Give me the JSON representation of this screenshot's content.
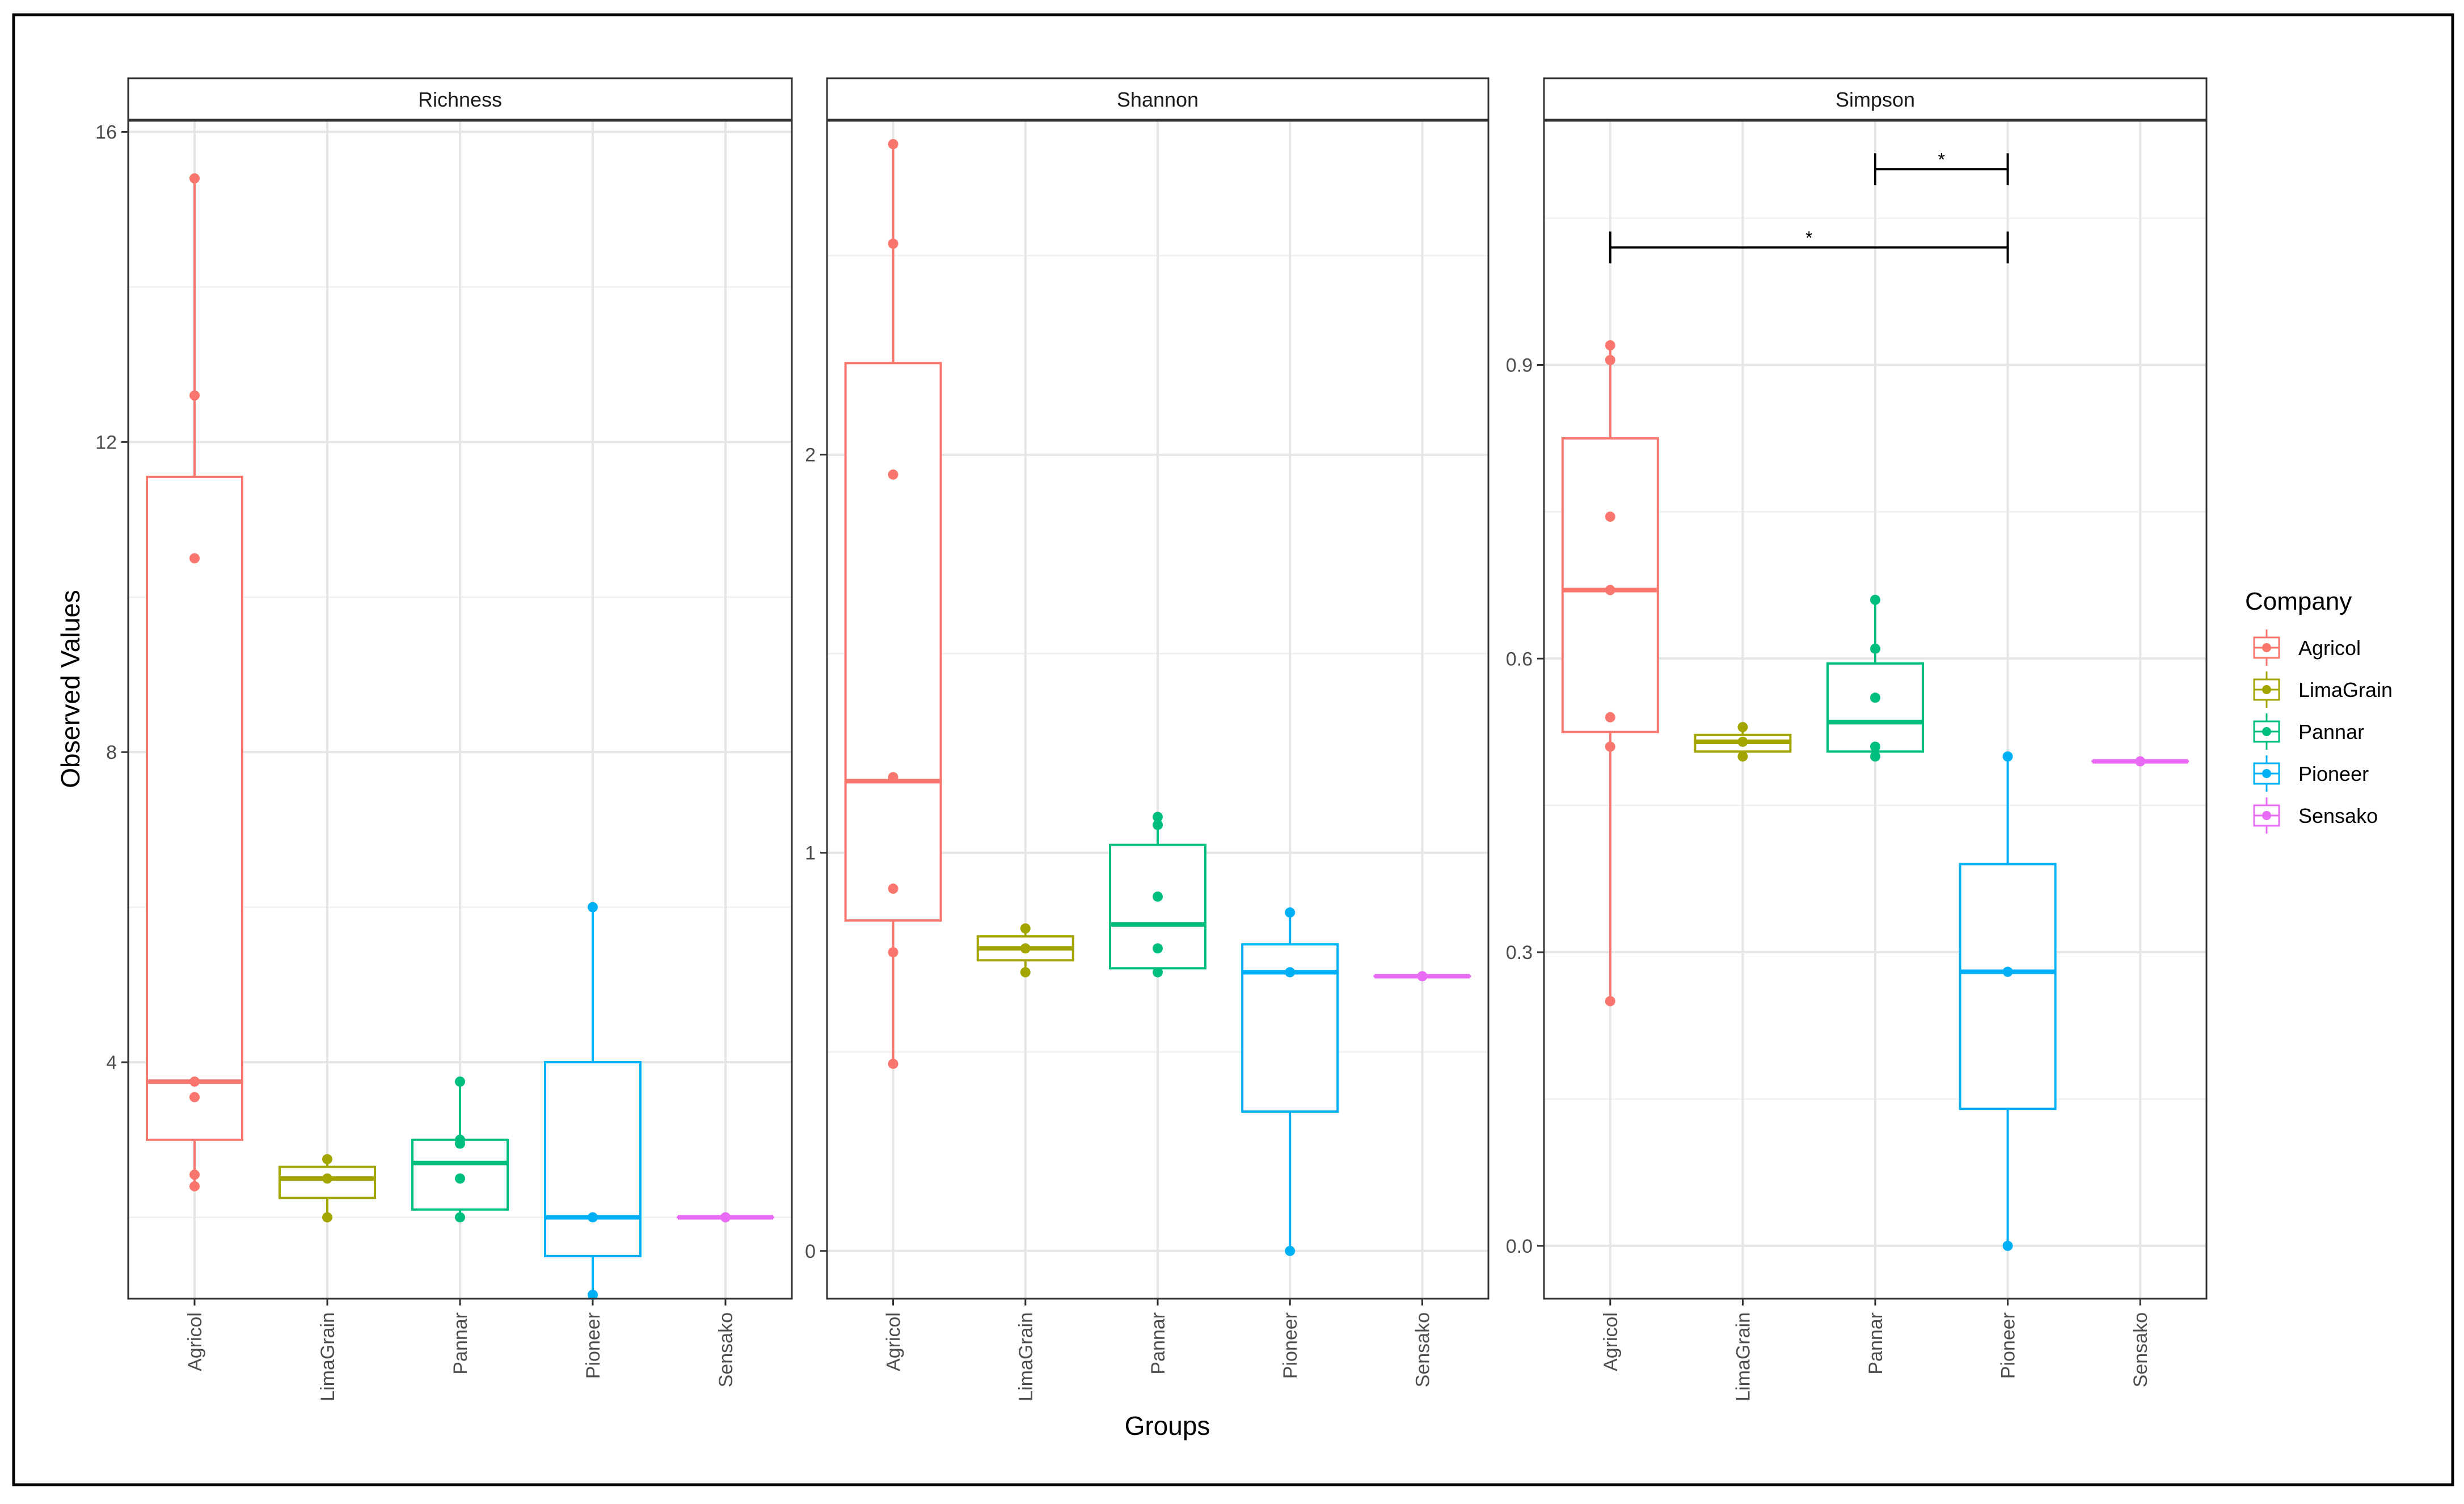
{
  "chart_data": {
    "type": "boxplot",
    "xlabel": "Groups",
    "ylabel": "Observed Values",
    "groups": [
      "Agricol",
      "LimaGrain",
      "Pannar",
      "Pioneer",
      "Sensako"
    ],
    "colors": {
      "Agricol": "#F8766D",
      "LimaGrain": "#A3A500",
      "Pannar": "#00BF7D",
      "Pioneer": "#00B0F6",
      "Sensako": "#E76BF3"
    },
    "legend": {
      "title": "Company",
      "position": "right",
      "entries": [
        "Agricol",
        "LimaGrain",
        "Pannar",
        "Pioneer",
        "Sensako"
      ]
    },
    "panels": [
      {
        "title": "Richness",
        "ylim": [
          0.95,
          16.15
        ],
        "yticks": [
          4,
          8,
          12,
          16
        ],
        "ytick_labels": [
          "4",
          "8",
          "12",
          "16"
        ],
        "boxes": [
          {
            "group": "Agricol",
            "q1": 3.0,
            "median": 3.75,
            "q3": 11.55,
            "whisker_low": 2.4,
            "whisker_high": 15.4
          },
          {
            "group": "LimaGrain",
            "q1": 2.25,
            "median": 2.5,
            "q3": 2.65,
            "whisker_low": 2.0,
            "whisker_high": 2.75
          },
          {
            "group": "Pannar",
            "q1": 2.1,
            "median": 2.7,
            "q3": 3.0,
            "whisker_low": 2.0,
            "whisker_high": 3.75
          },
          {
            "group": "Pioneer",
            "q1": 1.5,
            "median": 2.0,
            "q3": 4.0,
            "whisker_low": 1.0,
            "whisker_high": 6.0
          },
          {
            "group": "Sensako",
            "q1": 2.0,
            "median": 2.0,
            "q3": 2.0,
            "whisker_low": 2.0,
            "whisker_high": 2.0
          }
        ],
        "points": [
          {
            "group": "Agricol",
            "values": [
              15.4,
              12.6,
              10.5,
              3.75,
              3.55,
              2.55,
              2.4
            ]
          },
          {
            "group": "LimaGrain",
            "values": [
              2.75,
              2.5,
              2.0
            ]
          },
          {
            "group": "Pannar",
            "values": [
              3.75,
              3.0,
              2.95,
              2.5,
              2.0
            ]
          },
          {
            "group": "Pioneer",
            "values": [
              6.0,
              2.0,
              1.0
            ]
          },
          {
            "group": "Sensako",
            "values": [
              2.0
            ]
          }
        ],
        "significance": []
      },
      {
        "title": "Shannon",
        "ylim": [
          -0.12,
          2.84
        ],
        "yticks": [
          0,
          1,
          2
        ],
        "ytick_labels": [
          "0",
          "1",
          "2"
        ],
        "boxes": [
          {
            "group": "Agricol",
            "q1": 0.83,
            "median": 1.18,
            "q3": 2.23,
            "whisker_low": 0.47,
            "whisker_high": 2.78
          },
          {
            "group": "LimaGrain",
            "q1": 0.73,
            "median": 0.76,
            "q3": 0.79,
            "whisker_low": 0.7,
            "whisker_high": 0.81
          },
          {
            "group": "Pannar",
            "q1": 0.71,
            "median": 0.82,
            "q3": 1.02,
            "whisker_low": 0.7,
            "whisker_high": 1.09
          },
          {
            "group": "Pioneer",
            "q1": 0.35,
            "median": 0.7,
            "q3": 0.77,
            "whisker_low": 0.0,
            "whisker_high": 0.85
          },
          {
            "group": "Sensako",
            "q1": 0.69,
            "median": 0.69,
            "q3": 0.69,
            "whisker_low": 0.69,
            "whisker_high": 0.69
          }
        ],
        "points": [
          {
            "group": "Agricol",
            "values": [
              2.78,
              2.53,
              1.95,
              1.19,
              0.91,
              0.75,
              0.47
            ]
          },
          {
            "group": "LimaGrain",
            "values": [
              0.81,
              0.76,
              0.7
            ]
          },
          {
            "group": "Pannar",
            "values": [
              1.09,
              1.07,
              0.89,
              0.76,
              0.7
            ]
          },
          {
            "group": "Pioneer",
            "values": [
              0.85,
              0.7,
              0.0
            ]
          },
          {
            "group": "Sensako",
            "values": [
              0.69
            ]
          }
        ],
        "significance": []
      },
      {
        "title": "Simpson",
        "ylim": [
          -0.054,
          1.15
        ],
        "yticks": [
          0.0,
          0.3,
          0.6,
          0.9
        ],
        "ytick_labels": [
          "0.0",
          "0.3",
          "0.6",
          "0.9"
        ],
        "boxes": [
          {
            "group": "Agricol",
            "q1": 0.525,
            "median": 0.67,
            "q3": 0.825,
            "whisker_low": 0.25,
            "whisker_high": 0.92
          },
          {
            "group": "LimaGrain",
            "q1": 0.505,
            "median": 0.515,
            "q3": 0.522,
            "whisker_low": 0.5,
            "whisker_high": 0.53
          },
          {
            "group": "Pannar",
            "q1": 0.505,
            "median": 0.535,
            "q3": 0.595,
            "whisker_low": 0.5,
            "whisker_high": 0.66
          },
          {
            "group": "Pioneer",
            "q1": 0.14,
            "median": 0.28,
            "q3": 0.39,
            "whisker_low": 0.0,
            "whisker_high": 0.5
          },
          {
            "group": "Sensako",
            "q1": 0.495,
            "median": 0.495,
            "q3": 0.495,
            "whisker_low": 0.495,
            "whisker_high": 0.495
          }
        ],
        "points": [
          {
            "group": "Agricol",
            "values": [
              0.92,
              0.905,
              0.745,
              0.67,
              0.54,
              0.51,
              0.25
            ]
          },
          {
            "group": "LimaGrain",
            "values": [
              0.53,
              0.515,
              0.5
            ]
          },
          {
            "group": "Pannar",
            "values": [
              0.66,
              0.61,
              0.56,
              0.51,
              0.5
            ]
          },
          {
            "group": "Pioneer",
            "values": [
              0.5,
              0.28,
              0.0
            ]
          },
          {
            "group": "Sensako",
            "values": [
              0.495
            ]
          }
        ],
        "significance": [
          {
            "from": "Pannar",
            "to": "Pioneer",
            "y": 1.1,
            "label": "*"
          },
          {
            "from": "Agricol",
            "to": "Pioneer",
            "y": 1.02,
            "label": "*"
          }
        ]
      }
    ]
  }
}
